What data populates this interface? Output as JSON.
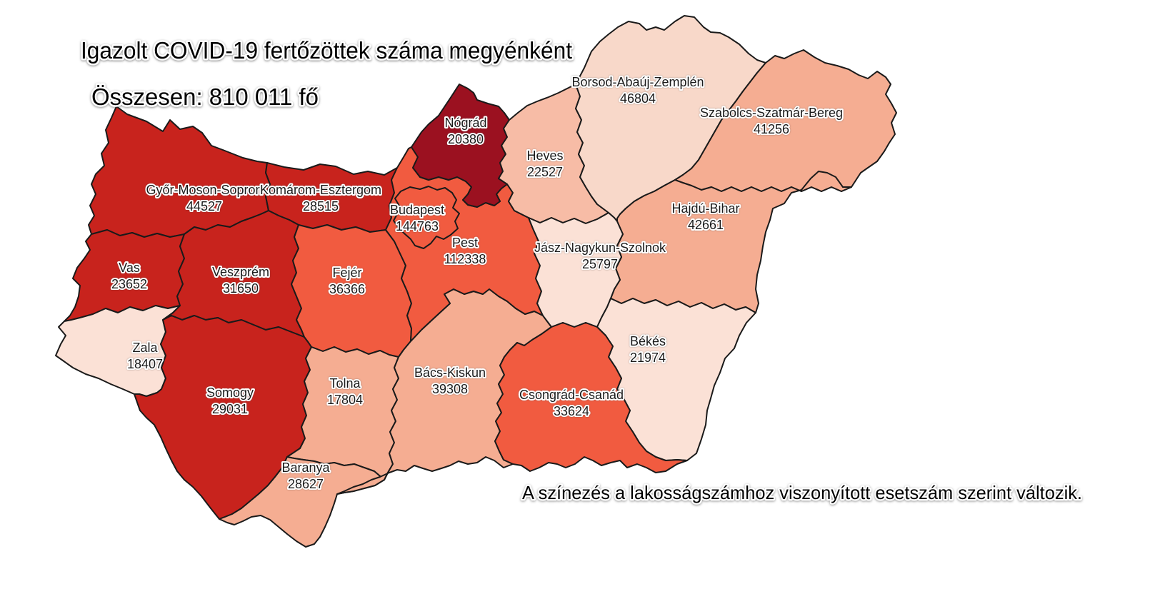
{
  "title": "Igazolt COVID-19 fertőzöttek száma megyénként",
  "total": "Összesen: 810 011 fő",
  "footnote": "A színezés a lakosságszámhoz viszonyított esetszám szerint változik.",
  "chart_data": {
    "type": "choropleth",
    "region": "Hungary counties (megyék)",
    "title": "Igazolt COVID-19 fertőzöttek száma megyénként",
    "total_label": "Összesen",
    "total_value": "810 011",
    "unit": "fő",
    "note": "A színezés a lakosságszámhoz viszonyított esetszám szerint változik.",
    "legend": "darker red = more cases relative to population",
    "border_color": "#1a1a1a",
    "background_color": "#ffffff",
    "counties": [
      {
        "name": "Győr-Moson-Sopron",
        "value": "44527",
        "color": "#C8231D"
      },
      {
        "name": "Komárom-Esztergom",
        "value": "28515",
        "color": "#C8231D"
      },
      {
        "name": "Vas",
        "value": "23652",
        "color": "#C8231D"
      },
      {
        "name": "Veszprém",
        "value": "31650",
        "color": "#C8231D"
      },
      {
        "name": "Zala",
        "value": "18407",
        "color": "#FBE1D6"
      },
      {
        "name": "Somogy",
        "value": "29031",
        "color": "#C8231D"
      },
      {
        "name": "Fejér",
        "value": "36366",
        "color": "#F15B40"
      },
      {
        "name": "Tolna",
        "value": "17804",
        "color": "#F5AD92"
      },
      {
        "name": "Baranya",
        "value": "28627",
        "color": "#F5AD92"
      },
      {
        "name": "Bács-Kiskun",
        "value": "39308",
        "color": "#F5AD92"
      },
      {
        "name": "Pest",
        "value": "112338",
        "color": "#F15B40"
      },
      {
        "name": "Budapest",
        "value": "144763",
        "color": "#F15B40"
      },
      {
        "name": "Nógrád",
        "value": "20380",
        "color": "#9B1120"
      },
      {
        "name": "Heves",
        "value": "22527",
        "color": "#F7BCA6"
      },
      {
        "name": "Borsod-Abaúj-Zemplén",
        "value": "46804",
        "color": "#F8D8C9"
      },
      {
        "name": "Szabolcs-Szatmár-Bereg",
        "value": "41256",
        "color": "#F5AD92"
      },
      {
        "name": "Hajdú-Bihar",
        "value": "42661",
        "color": "#F5AD92"
      },
      {
        "name": "Jász-Nagykun-Szolnok",
        "value": "25797",
        "color": "#FBE1D6"
      },
      {
        "name": "Békés",
        "value": "21974",
        "color": "#FBE1D6"
      },
      {
        "name": "Csongrád-Csanád",
        "value": "33624",
        "color": "#F15B40"
      }
    ]
  }
}
